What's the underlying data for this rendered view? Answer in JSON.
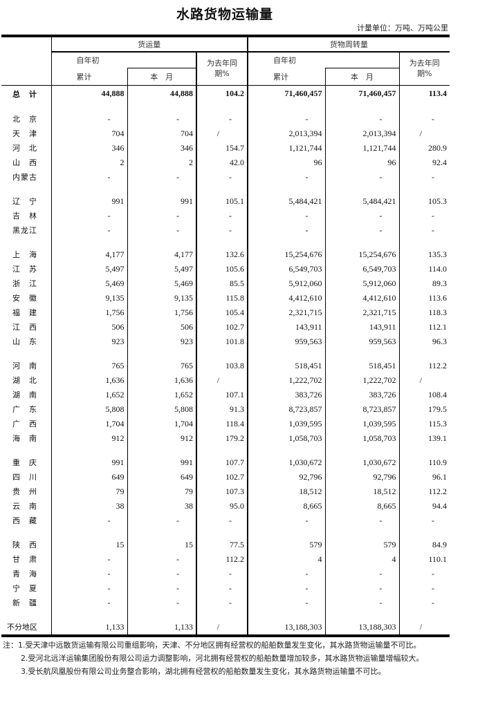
{
  "title": "水路货物运输量",
  "unit": "计量单位：万吨、万吨公里",
  "header": {
    "freight_volume": "货运量",
    "turnover": "货物周转量",
    "ytd_top": "自年初",
    "ytd_bottom": "累计",
    "month": "本　月",
    "yoy_top": "为去年同",
    "yoy_bottom": "期%"
  },
  "total": {
    "label": "总　计",
    "values": [
      "44,888",
      "44,888",
      "104.2",
      "71,460,457",
      "71,460,457",
      "113.4"
    ]
  },
  "groups": [
    [
      {
        "label": "北　京",
        "values": [
          "-",
          "-",
          "-",
          "-",
          "-",
          "-"
        ]
      },
      {
        "label": "天　津",
        "values": [
          "704",
          "704",
          "/",
          "2,013,394",
          "2,013,394",
          "/"
        ]
      },
      {
        "label": "河　北",
        "values": [
          "346",
          "346",
          "154.7",
          "1,121,744",
          "1,121,744",
          "280.9"
        ]
      },
      {
        "label": "山　西",
        "values": [
          "2",
          "2",
          "42.0",
          "96",
          "96",
          "92.4"
        ]
      },
      {
        "label": "内蒙古",
        "values": [
          "-",
          "-",
          "-",
          "-",
          "-",
          "-"
        ]
      }
    ],
    [
      {
        "label": "辽　宁",
        "values": [
          "991",
          "991",
          "105.1",
          "5,484,421",
          "5,484,421",
          "105.3"
        ]
      },
      {
        "label": "吉　林",
        "values": [
          "-",
          "-",
          "-",
          "-",
          "-",
          "-"
        ]
      },
      {
        "label": "黑龙江",
        "values": [
          "-",
          "-",
          "-",
          "-",
          "-",
          "-"
        ]
      }
    ],
    [
      {
        "label": "上　海",
        "values": [
          "4,177",
          "4,177",
          "132.6",
          "15,254,676",
          "15,254,676",
          "135.3"
        ]
      },
      {
        "label": "江　苏",
        "values": [
          "5,497",
          "5,497",
          "105.6",
          "6,549,703",
          "6,549,703",
          "114.0"
        ]
      },
      {
        "label": "浙　江",
        "values": [
          "5,469",
          "5,469",
          "85.5",
          "5,912,060",
          "5,912,060",
          "89.3"
        ]
      },
      {
        "label": "安　徽",
        "values": [
          "9,135",
          "9,135",
          "115.8",
          "4,412,610",
          "4,412,610",
          "113.6"
        ]
      },
      {
        "label": "福　建",
        "values": [
          "1,756",
          "1,756",
          "105.4",
          "2,321,715",
          "2,321,715",
          "118.3"
        ]
      },
      {
        "label": "江　西",
        "values": [
          "506",
          "506",
          "102.7",
          "143,911",
          "143,911",
          "112.1"
        ]
      },
      {
        "label": "山　东",
        "values": [
          "923",
          "923",
          "101.8",
          "959,563",
          "959,563",
          "96.3"
        ]
      }
    ],
    [
      {
        "label": "河　南",
        "values": [
          "765",
          "765",
          "103.8",
          "518,451",
          "518,451",
          "112.2"
        ]
      },
      {
        "label": "湖　北",
        "values": [
          "1,636",
          "1,636",
          "/",
          "1,222,702",
          "1,222,702",
          "/"
        ]
      },
      {
        "label": "湖　南",
        "values": [
          "1,652",
          "1,652",
          "107.1",
          "383,726",
          "383,726",
          "108.4"
        ]
      },
      {
        "label": "广　东",
        "values": [
          "5,808",
          "5,808",
          "91.3",
          "8,723,857",
          "8,723,857",
          "179.5"
        ]
      },
      {
        "label": "广　西",
        "values": [
          "1,704",
          "1,704",
          "118.4",
          "1,039,595",
          "1,039,595",
          "115.3"
        ]
      },
      {
        "label": "海　南",
        "values": [
          "912",
          "912",
          "179.2",
          "1,058,703",
          "1,058,703",
          "139.1"
        ]
      }
    ],
    [
      {
        "label": "重　庆",
        "values": [
          "991",
          "991",
          "107.7",
          "1,030,672",
          "1,030,672",
          "110.9"
        ]
      },
      {
        "label": "四　川",
        "values": [
          "649",
          "649",
          "102.7",
          "92,796",
          "92,796",
          "96.1"
        ]
      },
      {
        "label": "贵　州",
        "values": [
          "79",
          "79",
          "107.3",
          "18,512",
          "18,512",
          "112.2"
        ]
      },
      {
        "label": "云　南",
        "values": [
          "38",
          "38",
          "95.0",
          "8,665",
          "8,665",
          "94.4"
        ]
      },
      {
        "label": "西　藏",
        "values": [
          "-",
          "-",
          "-",
          "-",
          "-",
          "-"
        ]
      }
    ],
    [
      {
        "label": "陕　西",
        "values": [
          "15",
          "15",
          "77.5",
          "579",
          "579",
          "84.9"
        ]
      },
      {
        "label": "甘　肃",
        "values": [
          "-",
          "-",
          "112.2",
          "4",
          "4",
          "110.1"
        ]
      },
      {
        "label": "青　海",
        "values": [
          "-",
          "-",
          "-",
          "-",
          "-",
          "-"
        ]
      },
      {
        "label": "宁　夏",
        "values": [
          "-",
          "-",
          "-",
          "-",
          "-",
          "-"
        ]
      },
      {
        "label": "新　疆",
        "values": [
          "-",
          "-",
          "-",
          "-",
          "-",
          "-"
        ]
      }
    ],
    [
      {
        "label": "不分地区",
        "values": [
          "1,133",
          "1,133",
          "/",
          "13,188,303",
          "13,188,303",
          "/"
        ]
      }
    ]
  ],
  "notes": [
    "注：1.受天津中远散货运输有限公司重组影响，天津、不分地区拥有经营权的船舶数量发生变化，其水路货物运输量不可比。",
    "2.受河北远洋运输集团股份有限公司运力调整影响，河北拥有经营权的船舶数量增加较多，其水路货物运输量增幅较大。",
    "3.受长航凤凰股份有限公司业务整合影响，湖北拥有经营权的船舶数量发生变化，其水路货物运输量不可比。"
  ]
}
